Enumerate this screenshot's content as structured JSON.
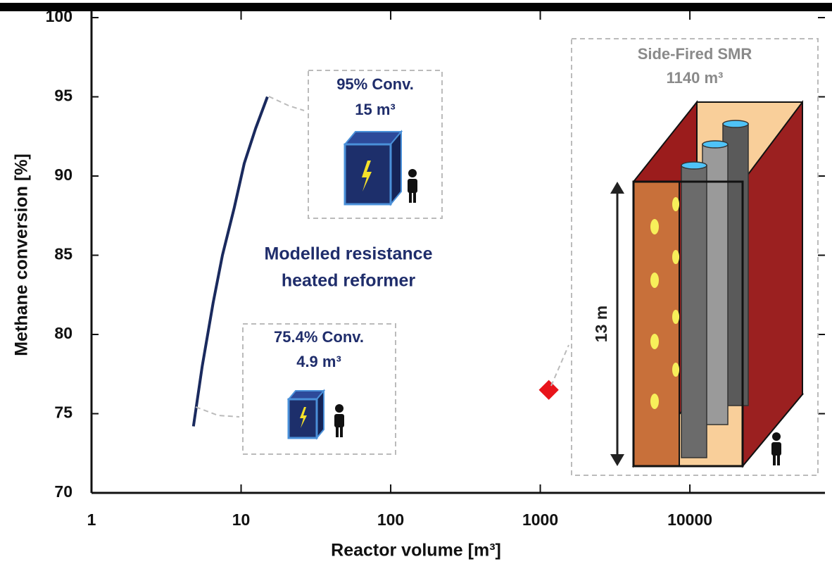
{
  "chart_data": {
    "type": "line",
    "xlabel": "Reactor volume [m³]",
    "ylabel": "Methane conversion [%]",
    "xscale": "log",
    "xlim": [
      1,
      80000
    ],
    "ylim": [
      70,
      100
    ],
    "xticks": [
      1,
      10,
      100,
      1000,
      10000
    ],
    "yticks": [
      70,
      75,
      80,
      85,
      90,
      95,
      100
    ],
    "series": [
      {
        "color": "#1a2a5e",
        "marker": "none",
        "x": [
          4.8,
          5.5,
          6.5,
          7.5,
          9,
          10.5,
          12.5,
          15
        ],
        "values": [
          74.2,
          78,
          82,
          85,
          88,
          90.8,
          93,
          95
        ]
      },
      {
        "color": "#e8141b",
        "marker": "diamond",
        "x": [
          1140
        ],
        "values": [
          76.5
        ]
      }
    ],
    "annotations": {
      "high": [
        "95% Conv.",
        "15 m³"
      ],
      "low": [
        "75.4% Conv.",
        "4.9 m³"
      ],
      "label": [
        "Modelled resistance",
        "heated reformer"
      ],
      "smr": [
        "Side-Fired SMR",
        "1140 m³"
      ],
      "height": "13 m"
    }
  }
}
